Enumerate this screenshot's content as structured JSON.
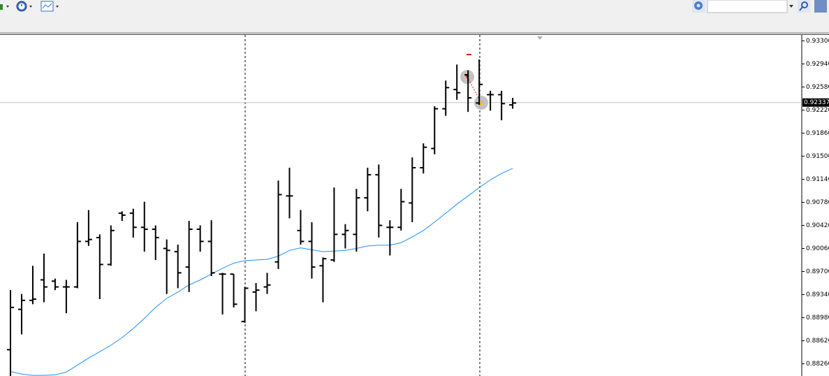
{
  "chart_data": {
    "type": "ohlc",
    "color": "#000000",
    "open": [
      0.8848,
      0.8911,
      0.8925,
      0.8957,
      0.8955,
      0.8946,
      0.8946,
      0.9017,
      0.9023,
      0.8981,
      0.9061,
      0.9061,
      0.9039,
      0.9036,
      0.9006,
      0.9001,
      0.8977,
      0.9036,
      0.9017,
      0.8966,
      0.8966,
      0.8892,
      0.8938,
      0.8946,
      0.8985,
      0.9088,
      0.9034,
      0.9017,
      0.8979,
      0.8988,
      0.9028,
      0.9028,
      0.9085,
      0.9121,
      0.9039,
      0.9039,
      0.9077,
      0.9132,
      0.9162,
      0.9224,
      0.9254,
      0.9277,
      0.9233,
      0.9246,
      0.9246,
      0.923
    ],
    "high": [
      0.8941,
      0.8935,
      0.8979,
      0.8998,
      0.8959,
      0.8957,
      0.9047,
      0.9066,
      0.9028,
      0.9042,
      0.9064,
      0.9068,
      0.9079,
      0.9042,
      0.902,
      0.9012,
      0.9049,
      0.9042,
      0.905,
      0.8968,
      0.8966,
      0.8946,
      0.8952,
      0.8968,
      0.9112,
      0.9132,
      0.9066,
      0.9047,
      0.8992,
      0.9101,
      0.9044,
      0.9099,
      0.9132,
      0.9137,
      0.905,
      0.9099,
      0.9148,
      0.917,
      0.9228,
      0.9268,
      0.9293,
      0.9284,
      0.9301,
      0.9252,
      0.9252,
      0.9241
    ],
    "low": [
      0.8807,
      0.8872,
      0.8919,
      0.8922,
      0.8941,
      0.8905,
      0.8944,
      0.901,
      0.8927,
      0.8979,
      0.9049,
      0.9023,
      0.9001,
      0.8988,
      0.8935,
      0.8944,
      0.8938,
      0.9001,
      0.8963,
      0.8903,
      0.8914,
      0.889,
      0.8908,
      0.8935,
      0.8974,
      0.9053,
      0.9012,
      0.8959,
      0.8922,
      0.8985,
      0.9006,
      0.9001,
      0.9064,
      0.9023,
      0.8995,
      0.9034,
      0.9047,
      0.9123,
      0.9153,
      0.9213,
      0.9238,
      0.9219,
      0.923,
      0.9221,
      0.9206,
      0.9224
    ],
    "close": [
      0.8914,
      0.8925,
      0.8927,
      0.8946,
      0.8946,
      0.8946,
      0.9017,
      0.902,
      0.8981,
      0.9034,
      0.9058,
      0.9039,
      0.9036,
      0.9023,
      0.9003,
      0.8968,
      0.9036,
      0.9017,
      0.8968,
      0.8966,
      0.8919,
      0.8944,
      0.8941,
      0.8949,
      0.909,
      0.9088,
      0.9017,
      0.8977,
      0.899,
      0.9028,
      0.9034,
      0.9085,
      0.9121,
      0.9042,
      0.9039,
      0.9079,
      0.9132,
      0.9164,
      0.9224,
      0.9257,
      0.9249,
      0.9241,
      0.9262,
      0.9246,
      0.9232,
      0.9233
    ],
    "line": {
      "color": "#1e90ff",
      "values": [
        0.8814,
        0.881,
        0.8808,
        0.8808,
        0.8809,
        0.8813,
        0.8824,
        0.8835,
        0.8845,
        0.8855,
        0.8867,
        0.8881,
        0.8897,
        0.8914,
        0.8928,
        0.8938,
        0.8949,
        0.8957,
        0.8966,
        0.8975,
        0.8983,
        0.8987,
        0.8988,
        0.8989,
        0.8994,
        0.9003,
        0.9007,
        0.9004,
        0.9001,
        0.9002,
        0.9003,
        0.9006,
        0.901,
        0.9011,
        0.9011,
        0.9015,
        0.9024,
        0.9034,
        0.9047,
        0.9061,
        0.9075,
        0.9088,
        0.9101,
        0.9113,
        0.9123,
        0.9131
      ]
    },
    "current_price": {
      "value": 0.92337,
      "label": "0.92337"
    },
    "ylim": [
      0.8807,
      0.9337
    ],
    "yticks": [
      {
        "value": 0.933,
        "label": "0.93300"
      },
      {
        "value": 0.9294,
        "label": "0.92940"
      },
      {
        "value": 0.9258,
        "label": "0.92580"
      },
      {
        "value": 0.9222,
        "label": "0.92220"
      },
      {
        "value": 0.9186,
        "label": "0.91860"
      },
      {
        "value": 0.915,
        "label": "0.91500"
      },
      {
        "value": 0.9114,
        "label": "0.91140"
      },
      {
        "value": 0.9078,
        "label": "0.90780"
      },
      {
        "value": 0.9042,
        "label": "0.90420"
      },
      {
        "value": 0.9006,
        "label": "0.90060"
      },
      {
        "value": 0.897,
        "label": "0.89700"
      },
      {
        "value": 0.8934,
        "label": "0.89340"
      },
      {
        "value": 0.8898,
        "label": "0.88980"
      },
      {
        "value": 0.8862,
        "label": "0.88620"
      },
      {
        "value": 0.8826,
        "label": "0.88260"
      }
    ]
  }
}
